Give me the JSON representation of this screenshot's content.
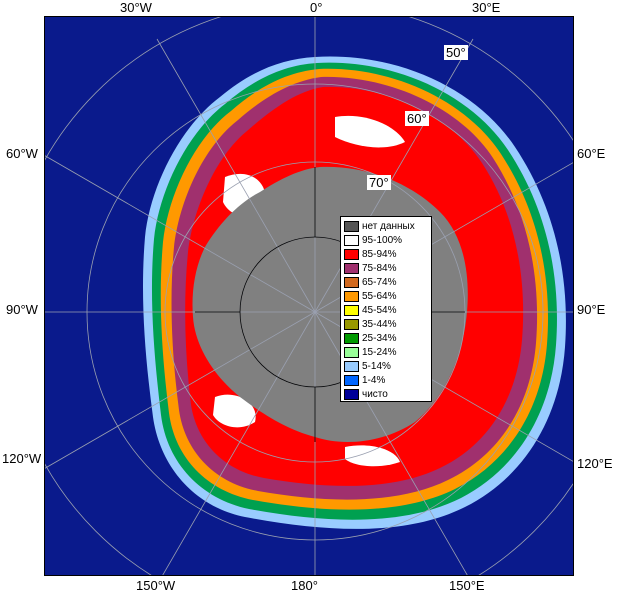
{
  "map": {
    "projection_label": "south-polar-stereographic",
    "colors": {
      "ocean": "#0a1a8c",
      "land": "#808080",
      "nodata": "#5a5a5a",
      "grid": "#9aa0b0"
    }
  },
  "longitude_labels": {
    "top_left": "30°W",
    "top_center": "0°",
    "top_right": "30°E",
    "left_upper": "60°W",
    "left_middle": "90°W",
    "left_lower": "120°W",
    "right_upper": "60°E",
    "right_middle": "90°E",
    "right_lower": "120°E",
    "bottom_left": "150°W",
    "bottom_center": "180°",
    "bottom_right": "150°E"
  },
  "latitude_labels": {
    "lat50": "50°",
    "lat60": "60°",
    "lat70": "70°"
  },
  "legend": {
    "items": [
      {
        "label": "нет данных",
        "color": "#555555"
      },
      {
        "label": "95-100%",
        "color": "#ffffff"
      },
      {
        "label": "85-94%",
        "color": "#ff0000"
      },
      {
        "label": "75-84%",
        "color": "#a0306e"
      },
      {
        "label": "65-74%",
        "color": "#d2691e"
      },
      {
        "label": "55-64%",
        "color": "#ff9900"
      },
      {
        "label": "45-54%",
        "color": "#ffff00"
      },
      {
        "label": "35-44%",
        "color": "#999900"
      },
      {
        "label": "25-34%",
        "color": "#009900"
      },
      {
        "label": "15-24%",
        "color": "#99ff99"
      },
      {
        "label": "5-14%",
        "color": "#99ccff"
      },
      {
        "label": "1-4%",
        "color": "#0066ff"
      },
      {
        "label": "чисто",
        "color": "#000099"
      }
    ]
  }
}
